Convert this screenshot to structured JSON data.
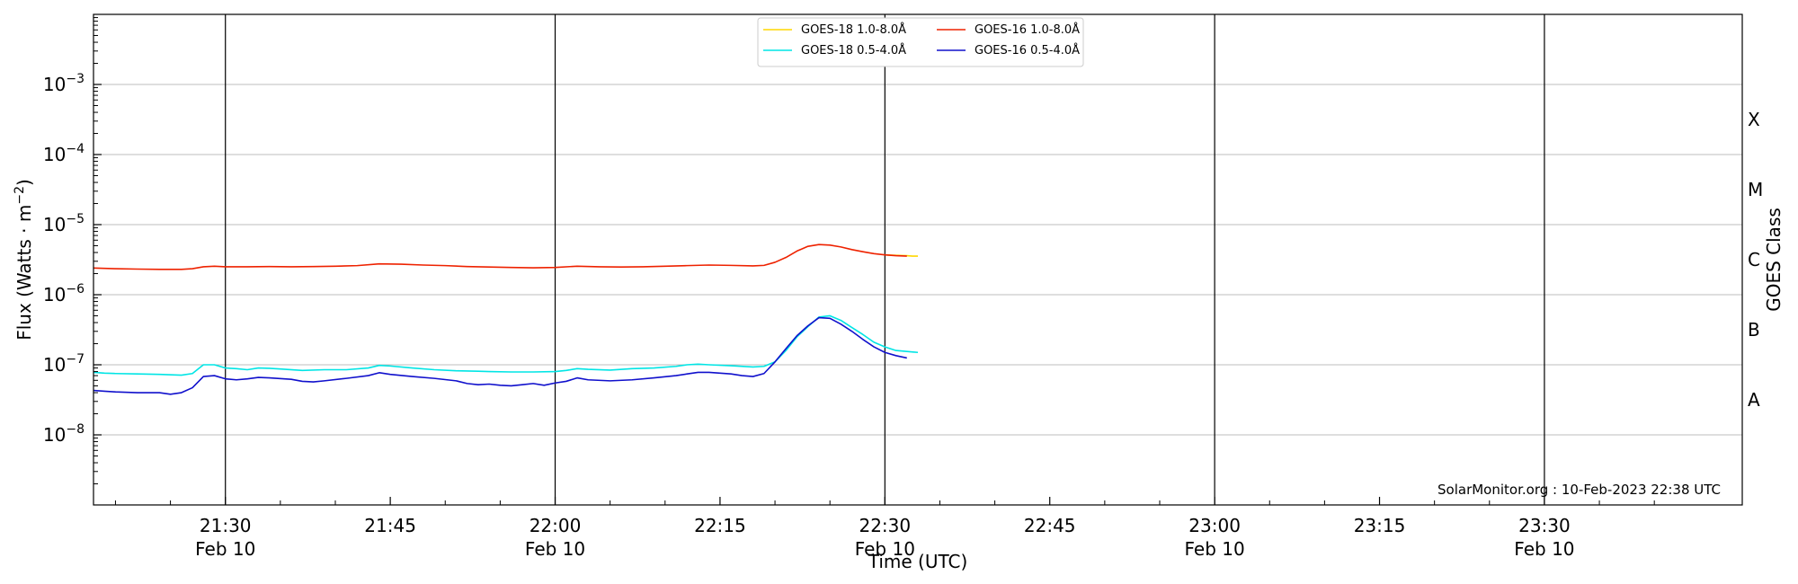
{
  "chart_data": {
    "type": "line",
    "xlabel": "Time (UTC)",
    "ylabel_main": "Flux (Watts · m",
    "ylabel_sup": "−2",
    "ylabel_close": ")",
    "ylabel_right": "GOES Class",
    "yscale": "log",
    "ylim": [
      1e-09,
      0.01
    ],
    "grid": "horizontal",
    "legend_position": "top-center",
    "xlim_minutes": [
      1278,
      1428
    ],
    "x_ticks": [
      {
        "minute": 1290,
        "time": "21:30",
        "date": "Feb 10"
      },
      {
        "minute": 1305,
        "time": "21:45",
        "date": ""
      },
      {
        "minute": 1320,
        "time": "22:00",
        "date": "Feb 10"
      },
      {
        "minute": 1335,
        "time": "22:15",
        "date": ""
      },
      {
        "minute": 1350,
        "time": "22:30",
        "date": "Feb 10"
      },
      {
        "minute": 1365,
        "time": "22:45",
        "date": ""
      },
      {
        "minute": 1380,
        "time": "23:00",
        "date": "Feb 10"
      },
      {
        "minute": 1395,
        "time": "23:15",
        "date": ""
      },
      {
        "minute": 1410,
        "time": "23:30",
        "date": "Feb 10"
      }
    ],
    "vertical_lines_minutes": [
      1290,
      1320,
      1350,
      1380,
      1410
    ],
    "y_ticks": [
      {
        "value": 1e-08,
        "base": "10",
        "exp": "−8"
      },
      {
        "value": 1e-07,
        "base": "10",
        "exp": "−7"
      },
      {
        "value": 1e-06,
        "base": "10",
        "exp": "−6"
      },
      {
        "value": 1e-05,
        "base": "10",
        "exp": "−5"
      },
      {
        "value": 0.0001,
        "base": "10",
        "exp": "−4"
      },
      {
        "value": 0.001,
        "base": "10",
        "exp": "−3"
      }
    ],
    "goes_classes": [
      {
        "label": "A",
        "value": 3.16e-08
      },
      {
        "label": "B",
        "value": 3.16e-07
      },
      {
        "label": "C",
        "value": 3.16e-06
      },
      {
        "label": "M",
        "value": 3.16e-05
      },
      {
        "label": "X",
        "value": 0.000316
      }
    ],
    "series": [
      {
        "name": "GOES-18 1.0-8.0Å",
        "color": "#ffd700",
        "points": [
          [
            1350,
            3.7e-06
          ],
          [
            1351,
            3.65e-06
          ],
          [
            1352,
            3.6e-06
          ],
          [
            1352.5,
            3.55e-06
          ],
          [
            1353,
            3.55e-06
          ]
        ]
      },
      {
        "name": "GOES-18 0.5-4.0Å",
        "color": "#00e5e5",
        "points": [
          [
            1278,
            7.8e-08
          ],
          [
            1279,
            7.6e-08
          ],
          [
            1280,
            7.5e-08
          ],
          [
            1282,
            7.4e-08
          ],
          [
            1284,
            7.3e-08
          ],
          [
            1286,
            7.1e-08
          ],
          [
            1287,
            7.5e-08
          ],
          [
            1288,
            1e-07
          ],
          [
            1289,
            1e-07
          ],
          [
            1290,
            9e-08
          ],
          [
            1291,
            8.8e-08
          ],
          [
            1292,
            8.5e-08
          ],
          [
            1293,
            9e-08
          ],
          [
            1294,
            8.9e-08
          ],
          [
            1295,
            8.7e-08
          ],
          [
            1297,
            8.3e-08
          ],
          [
            1299,
            8.5e-08
          ],
          [
            1301,
            8.5e-08
          ],
          [
            1303,
            9e-08
          ],
          [
            1304,
            9.8e-08
          ],
          [
            1305,
            9.6e-08
          ],
          [
            1307,
            9e-08
          ],
          [
            1309,
            8.5e-08
          ],
          [
            1311,
            8.2e-08
          ],
          [
            1313,
            8.1e-08
          ],
          [
            1314,
            8e-08
          ],
          [
            1316,
            7.9e-08
          ],
          [
            1318,
            7.9e-08
          ],
          [
            1320,
            8e-08
          ],
          [
            1321,
            8.3e-08
          ],
          [
            1322,
            8.8e-08
          ],
          [
            1323,
            8.6e-08
          ],
          [
            1325,
            8.4e-08
          ],
          [
            1327,
            8.8e-08
          ],
          [
            1329,
            9e-08
          ],
          [
            1331,
            9.5e-08
          ],
          [
            1332,
            1e-07
          ],
          [
            1333,
            1.02e-07
          ],
          [
            1334,
            1e-07
          ],
          [
            1336,
            9.7e-08
          ],
          [
            1338,
            9.3e-08
          ],
          [
            1339,
            9.5e-08
          ],
          [
            1340,
            1.1e-07
          ],
          [
            1341,
            1.6e-07
          ],
          [
            1342,
            2.5e-07
          ],
          [
            1343,
            3.5e-07
          ],
          [
            1344,
            4.8e-07
          ],
          [
            1345,
            5e-07
          ],
          [
            1346,
            4.3e-07
          ],
          [
            1347,
            3.4e-07
          ],
          [
            1348,
            2.7e-07
          ],
          [
            1349,
            2.1e-07
          ],
          [
            1350,
            1.8e-07
          ],
          [
            1351,
            1.6e-07
          ],
          [
            1352,
            1.55e-07
          ],
          [
            1353,
            1.5e-07
          ]
        ]
      },
      {
        "name": "GOES-16 1.0-8.0Å",
        "color": "#ee2200",
        "points": [
          [
            1278,
            2.4e-06
          ],
          [
            1280,
            2.35e-06
          ],
          [
            1282,
            2.32e-06
          ],
          [
            1284,
            2.3e-06
          ],
          [
            1286,
            2.3e-06
          ],
          [
            1287,
            2.35e-06
          ],
          [
            1288,
            2.5e-06
          ],
          [
            1289,
            2.55e-06
          ],
          [
            1290,
            2.5e-06
          ],
          [
            1292,
            2.5e-06
          ],
          [
            1294,
            2.52e-06
          ],
          [
            1296,
            2.5e-06
          ],
          [
            1298,
            2.52e-06
          ],
          [
            1300,
            2.55e-06
          ],
          [
            1302,
            2.6e-06
          ],
          [
            1304,
            2.75e-06
          ],
          [
            1306,
            2.72e-06
          ],
          [
            1308,
            2.65e-06
          ],
          [
            1310,
            2.6e-06
          ],
          [
            1312,
            2.52e-06
          ],
          [
            1314,
            2.48e-06
          ],
          [
            1316,
            2.45e-06
          ],
          [
            1318,
            2.42e-06
          ],
          [
            1320,
            2.45e-06
          ],
          [
            1322,
            2.55e-06
          ],
          [
            1324,
            2.5e-06
          ],
          [
            1326,
            2.48e-06
          ],
          [
            1328,
            2.5e-06
          ],
          [
            1330,
            2.55e-06
          ],
          [
            1332,
            2.6e-06
          ],
          [
            1334,
            2.65e-06
          ],
          [
            1336,
            2.62e-06
          ],
          [
            1338,
            2.58e-06
          ],
          [
            1339,
            2.62e-06
          ],
          [
            1340,
            2.9e-06
          ],
          [
            1341,
            3.4e-06
          ],
          [
            1342,
            4.2e-06
          ],
          [
            1343,
            4.9e-06
          ],
          [
            1344,
            5.2e-06
          ],
          [
            1345,
            5.1e-06
          ],
          [
            1346,
            4.8e-06
          ],
          [
            1347,
            4.4e-06
          ],
          [
            1348,
            4.1e-06
          ],
          [
            1349,
            3.85e-06
          ],
          [
            1350,
            3.7e-06
          ],
          [
            1351,
            3.6e-06
          ],
          [
            1352,
            3.55e-06
          ]
        ]
      },
      {
        "name": "GOES-16 0.5-4.0Å",
        "color": "#1010cc",
        "points": [
          [
            1278,
            4.3e-08
          ],
          [
            1279,
            4.2e-08
          ],
          [
            1280,
            4.1e-08
          ],
          [
            1282,
            4e-08
          ],
          [
            1284,
            4e-08
          ],
          [
            1285,
            3.8e-08
          ],
          [
            1286,
            4e-08
          ],
          [
            1287,
            4.7e-08
          ],
          [
            1288,
            6.8e-08
          ],
          [
            1289,
            7e-08
          ],
          [
            1290,
            6.3e-08
          ],
          [
            1291,
            6.1e-08
          ],
          [
            1292,
            6.3e-08
          ],
          [
            1293,
            6.6e-08
          ],
          [
            1294,
            6.5e-08
          ],
          [
            1296,
            6.2e-08
          ],
          [
            1297,
            5.8e-08
          ],
          [
            1298,
            5.7e-08
          ],
          [
            1299,
            5.9e-08
          ],
          [
            1301,
            6.4e-08
          ],
          [
            1303,
            7e-08
          ],
          [
            1304,
            7.7e-08
          ],
          [
            1305,
            7.3e-08
          ],
          [
            1307,
            6.8e-08
          ],
          [
            1309,
            6.4e-08
          ],
          [
            1311,
            5.9e-08
          ],
          [
            1312,
            5.4e-08
          ],
          [
            1313,
            5.2e-08
          ],
          [
            1314,
            5.3e-08
          ],
          [
            1315,
            5.1e-08
          ],
          [
            1316,
            5e-08
          ],
          [
            1317,
            5.2e-08
          ],
          [
            1318,
            5.4e-08
          ],
          [
            1319,
            5.1e-08
          ],
          [
            1320,
            5.5e-08
          ],
          [
            1321,
            5.8e-08
          ],
          [
            1322,
            6.5e-08
          ],
          [
            1323,
            6.1e-08
          ],
          [
            1325,
            5.9e-08
          ],
          [
            1327,
            6.1e-08
          ],
          [
            1329,
            6.5e-08
          ],
          [
            1331,
            7e-08
          ],
          [
            1332,
            7.4e-08
          ],
          [
            1333,
            7.8e-08
          ],
          [
            1334,
            7.8e-08
          ],
          [
            1336,
            7.4e-08
          ],
          [
            1337,
            7e-08
          ],
          [
            1338,
            6.8e-08
          ],
          [
            1339,
            7.5e-08
          ],
          [
            1340,
            1.1e-07
          ],
          [
            1341,
            1.7e-07
          ],
          [
            1342,
            2.6e-07
          ],
          [
            1343,
            3.6e-07
          ],
          [
            1344,
            4.7e-07
          ],
          [
            1345,
            4.6e-07
          ],
          [
            1346,
            3.8e-07
          ],
          [
            1347,
            3e-07
          ],
          [
            1348,
            2.3e-07
          ],
          [
            1349,
            1.8e-07
          ],
          [
            1350,
            1.5e-07
          ],
          [
            1351,
            1.35e-07
          ],
          [
            1352,
            1.25e-07
          ]
        ]
      }
    ],
    "credit": "SolarMonitor.org : 10-Feb-2023 22:38 UTC"
  }
}
